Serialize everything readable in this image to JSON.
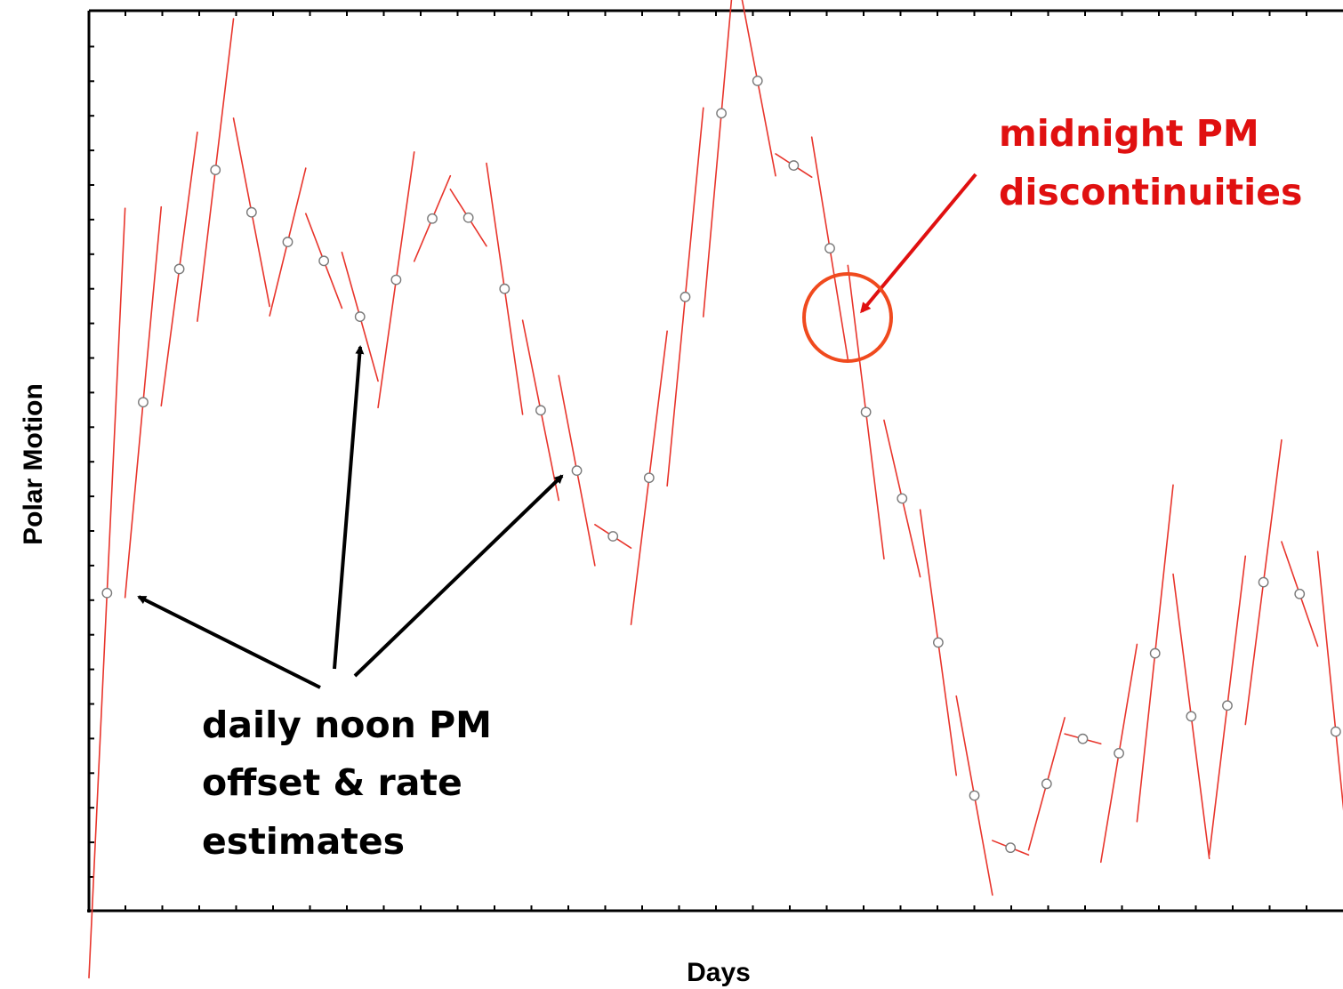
{
  "chart_data": {
    "type": "line",
    "title": "",
    "xlabel": "Days",
    "ylabel": "Polar Motion",
    "xlim": [
      0,
      34.7
    ],
    "ylim": [
      0,
      100
    ],
    "grid": false,
    "tick_labels_shown": false,
    "series": [
      {
        "style": "daily noon estimates (markers) with per-day rate segments",
        "color": "#e8352c",
        "points": [
          {
            "x": 0.5,
            "y": 35.3,
            "rate": 85.5
          },
          {
            "x": 1.5,
            "y": 56.5,
            "rate": 43.4
          },
          {
            "x": 2.5,
            "y": 71.3,
            "rate": 30.4
          },
          {
            "x": 3.5,
            "y": 82.3,
            "rate": 33.6
          },
          {
            "x": 4.5,
            "y": 77.6,
            "rate": -20.9
          },
          {
            "x": 5.5,
            "y": 74.3,
            "rate": 16.4
          },
          {
            "x": 6.5,
            "y": 72.2,
            "rate": -10.5
          },
          {
            "x": 7.5,
            "y": 66.0,
            "rate": -14.3
          },
          {
            "x": 8.5,
            "y": 70.1,
            "rate": 28.4
          },
          {
            "x": 9.5,
            "y": 76.9,
            "rate": 9.5
          },
          {
            "x": 10.5,
            "y": 77.0,
            "rate": -6.3
          },
          {
            "x": 11.5,
            "y": 69.1,
            "rate": -27.9
          },
          {
            "x": 12.5,
            "y": 55.6,
            "rate": -20.0
          },
          {
            "x": 13.5,
            "y": 48.9,
            "rate": -21.1
          },
          {
            "x": 14.5,
            "y": 41.6,
            "rate": -2.6
          },
          {
            "x": 15.5,
            "y": 48.1,
            "rate": 32.6
          },
          {
            "x": 16.5,
            "y": 68.2,
            "rate": 42.0
          },
          {
            "x": 17.5,
            "y": 88.6,
            "rate": 45.2
          },
          {
            "x": 18.5,
            "y": 92.2,
            "rate": -21.1
          },
          {
            "x": 19.5,
            "y": 82.8,
            "rate": -2.6
          },
          {
            "x": 20.5,
            "y": 73.6,
            "rate": -24.7
          },
          {
            "x": 21.5,
            "y": 55.4,
            "rate": -32.6
          },
          {
            "x": 22.5,
            "y": 45.8,
            "rate": -17.4
          },
          {
            "x": 23.5,
            "y": 29.8,
            "rate": -29.5
          },
          {
            "x": 24.5,
            "y": 12.8,
            "rate": -22.1
          },
          {
            "x": 25.5,
            "y": 7.0,
            "rate": -1.6
          },
          {
            "x": 26.5,
            "y": 14.1,
            "rate": 14.7
          },
          {
            "x": 27.5,
            "y": 19.1,
            "rate": -1.1
          },
          {
            "x": 28.5,
            "y": 17.5,
            "rate": 24.2
          },
          {
            "x": 29.5,
            "y": 28.6,
            "rate": 37.4
          },
          {
            "x": 30.5,
            "y": 21.6,
            "rate": -31.6
          },
          {
            "x": 31.5,
            "y": 22.8,
            "rate": 33.2
          },
          {
            "x": 32.5,
            "y": 36.5,
            "rate": 31.6
          },
          {
            "x": 33.5,
            "y": 35.2,
            "rate": -11.6
          },
          {
            "x": 34.5,
            "y": 19.9,
            "rate": -40.0
          }
        ]
      }
    ],
    "annotations": [
      {
        "id": "noon",
        "text_lines": [
          "daily noon PM",
          "offset & rate",
          "estimates"
        ],
        "color": "#000000",
        "points_to_days": [
          0.5,
          7.5,
          13.5
        ]
      },
      {
        "id": "midnight",
        "text_lines": [
          "midnight PM",
          "discontinuities"
        ],
        "color": "#e01010",
        "points_to_day": 21
      }
    ]
  }
}
